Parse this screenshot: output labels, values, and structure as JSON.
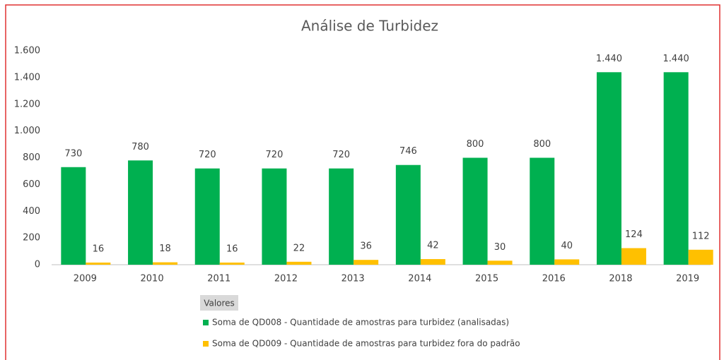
{
  "chart_data": {
    "type": "bar",
    "title": "Análise de Turbidez",
    "categories": [
      "2009",
      "2010",
      "2011",
      "2012",
      "2013",
      "2014",
      "2015",
      "2016",
      "2018",
      "2019"
    ],
    "series": [
      {
        "name": "Soma de QD008 - Quantidade de amostras para turbidez (analisadas)",
        "color": "#00b050",
        "values": [
          730,
          780,
          720,
          720,
          720,
          746,
          800,
          800,
          1440,
          1440
        ],
        "value_labels": [
          "730",
          "780",
          "720",
          "720",
          "720",
          "746",
          "800",
          "800",
          "1.440",
          "1.440"
        ]
      },
      {
        "name": "Soma de QD009 - Quantidade de amostras para turbidez fora do padrão",
        "color": "#ffc000",
        "values": [
          16,
          18,
          16,
          22,
          36,
          42,
          30,
          40,
          124,
          112
        ]
      }
    ],
    "legend_title": "Valores",
    "ylim": [
      0,
      1600
    ],
    "yticks": [
      0,
      200,
      400,
      600,
      800,
      {
        "value": 1000,
        "label": "1.000"
      },
      {
        "value": 1200,
        "label": "1.200"
      },
      {
        "value": 1400,
        "label": "1.400"
      },
      {
        "value": 1600,
        "label": "1.600"
      }
    ],
    "grid": false
  }
}
